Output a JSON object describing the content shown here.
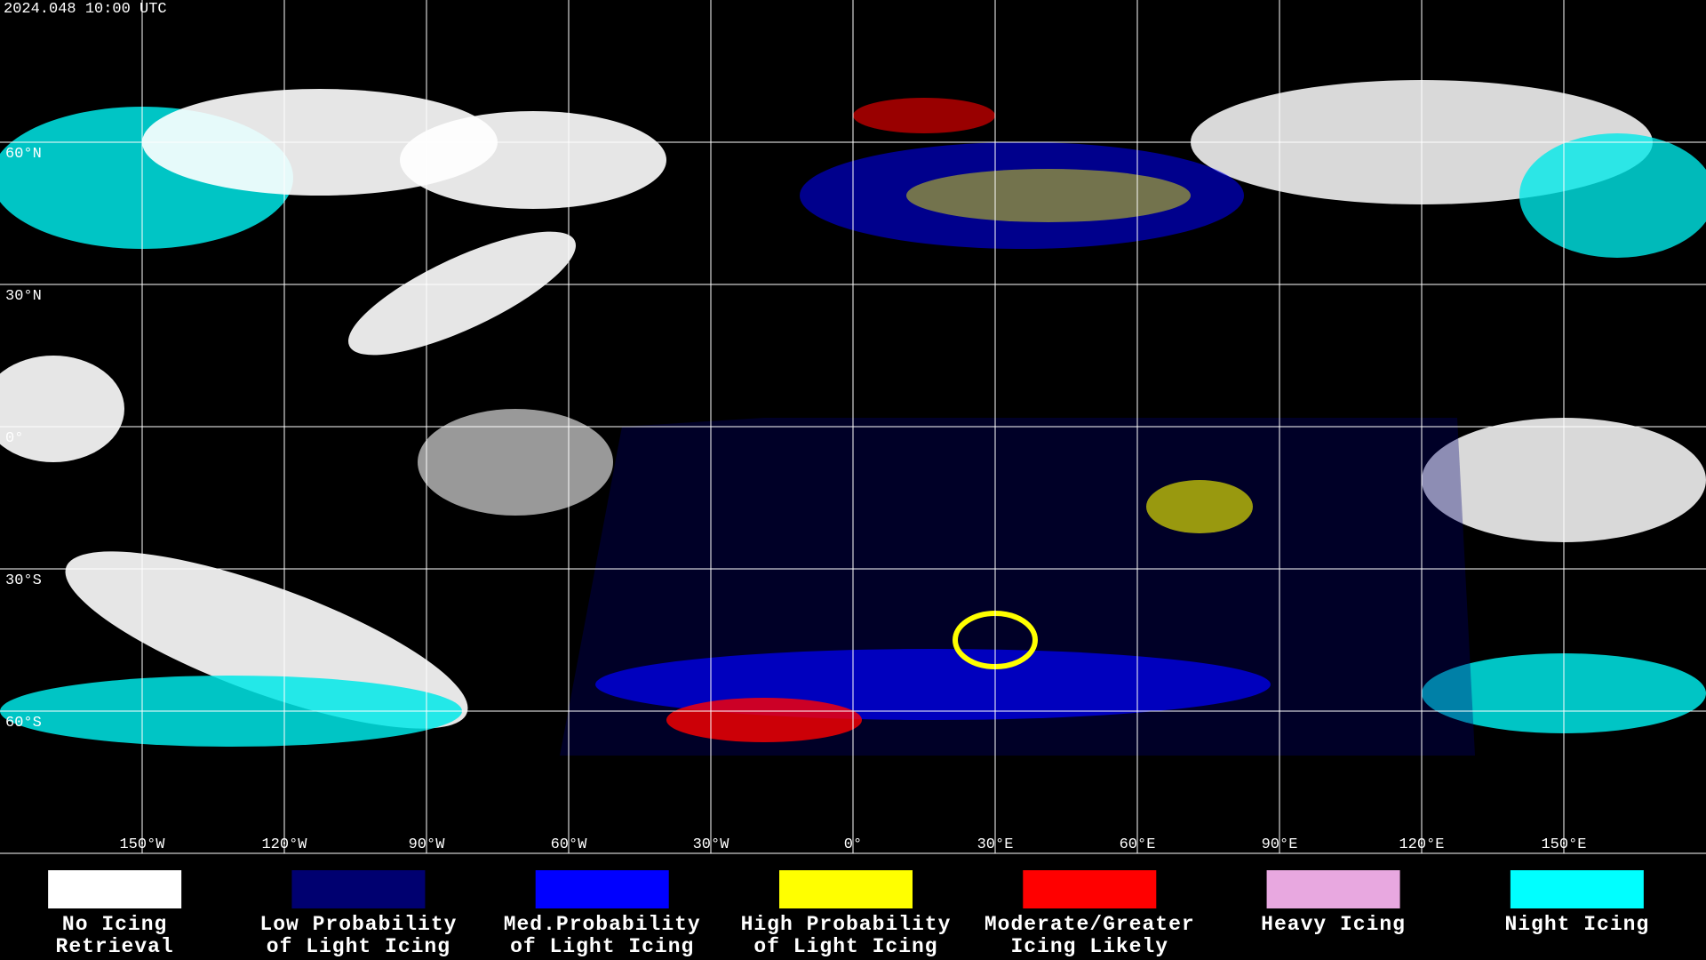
{
  "header": {
    "timestamp": "2024.048 10:00 UTC"
  },
  "map": {
    "lat_labels": [
      "60°N",
      "30°N",
      "0°",
      "30°S",
      "60°S"
    ],
    "lon_labels": [
      "150°W",
      "120°W",
      "90°W",
      "60°W",
      "30°W",
      "0°",
      "30°E",
      "60°E",
      "90°E",
      "120°E",
      "150°E"
    ]
  },
  "legend": {
    "items": [
      {
        "color": "#ffffff",
        "lines": [
          "No Icing",
          "Retrieval"
        ]
      },
      {
        "color": "#000070",
        "lines": [
          "Low Probability",
          "of Light Icing"
        ]
      },
      {
        "color": "#0000ff",
        "lines": [
          "Med.Probability",
          "of Light Icing"
        ]
      },
      {
        "color": "#ffff00",
        "lines": [
          "High Probability",
          "of Light Icing"
        ]
      },
      {
        "color": "#ff0000",
        "lines": [
          "Moderate/Greater",
          "Icing Likely"
        ]
      },
      {
        "color": "#e8a8e0",
        "lines": [
          "Heavy Icing"
        ]
      },
      {
        "color": "#00ffff",
        "lines": [
          "Night Icing"
        ]
      }
    ]
  }
}
